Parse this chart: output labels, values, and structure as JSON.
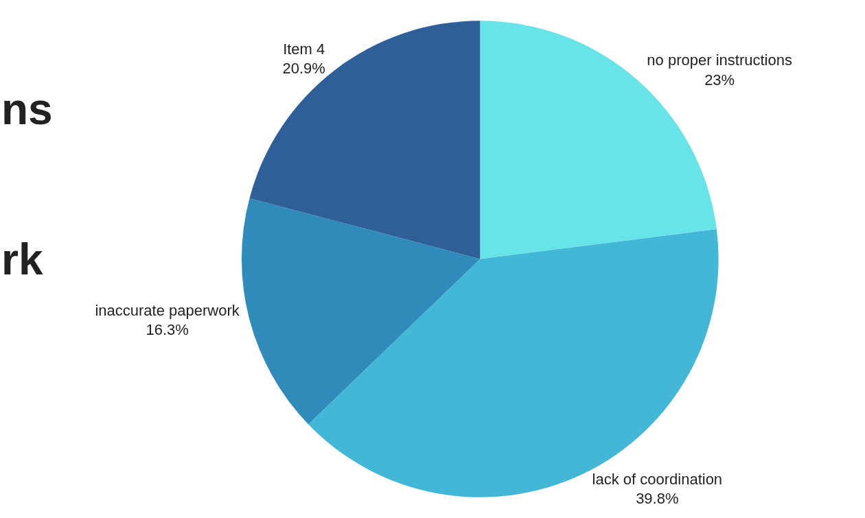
{
  "chart_data": {
    "type": "pie",
    "categories": [
      "no proper instructions",
      "lack of coordination",
      "inaccurate paperwork",
      "Item 4"
    ],
    "values": [
      23,
      39.8,
      16.3,
      20.9
    ],
    "colors": [
      "#68e4e8",
      "#42b7d6",
      "#2e8bba",
      "#2f5f98"
    ],
    "value_labels": [
      "23%",
      "39.8%",
      "16.3%",
      "20.9%"
    ],
    "annotations": [
      "ns",
      "rk"
    ],
    "legend": false
  }
}
